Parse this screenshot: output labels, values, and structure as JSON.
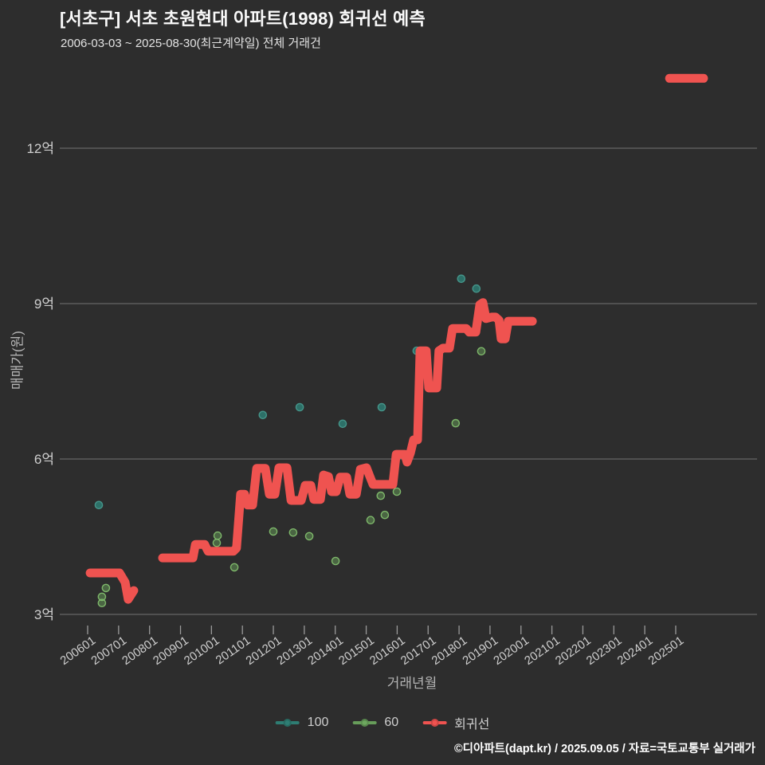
{
  "header": {
    "title": "[서초구] 서초 초원현대 아파트(1998) 회귀선 예측",
    "subtitle": "2006-03-03 ~ 2025-08-30(최근계약일) 전체 거래건"
  },
  "footer": {
    "credit": "©디아파트(dapt.kr) / 2025.09.05 / 자료=국토교통부 실거래가"
  },
  "colors": {
    "background": "#2d2d2d",
    "red": "#ef5350",
    "teal": "#2e7d73",
    "teal_stroke": "#45958a",
    "green_fill": "rgba(110,170,95,0.45)",
    "green_stroke": "rgba(130,190,110,0.95)",
    "grid": "#8c8c8c",
    "tick": "#9a9a9a",
    "tick_text": "#cfcfcf"
  },
  "chart_data": {
    "type": "scatter+line",
    "title": "[서초구] 서초 초원현대 아파트(1998) 회귀선 예측",
    "subtitle": "2006-03-03 ~ 2025-08-30(최근계약일) 전체 거래건",
    "xlabel": "거래년월",
    "ylabel": "매매가(원)",
    "legend_position": "bottom-center",
    "grid": "horizontal-only",
    "x_axis": {
      "tick_labels": [
        "200601",
        "200701",
        "200801",
        "200901",
        "201001",
        "201101",
        "201201",
        "201301",
        "201401",
        "201501",
        "201601",
        "201701",
        "201801",
        "201901",
        "202001",
        "202101",
        "202201",
        "202301",
        "202401",
        "202501"
      ],
      "tick_years": [
        2006,
        2007,
        2008,
        2009,
        2010,
        2011,
        2012,
        2013,
        2014,
        2015,
        2016,
        2017,
        2018,
        2019,
        2020,
        2021,
        2022,
        2023,
        2024,
        2025
      ],
      "range_years": [
        2005.1,
        2027.6
      ]
    },
    "y_axis": {
      "tick_labels": [
        "3억",
        "6억",
        "9억",
        "12억"
      ],
      "tick_values": [
        3,
        6,
        9,
        12
      ],
      "range_eok": [
        2.5,
        13.9
      ],
      "unit": "억"
    },
    "series": [
      {
        "name": "100",
        "type": "scatter",
        "color_key": "teal",
        "points": [
          [
            2006.36,
            5.11
          ],
          [
            2011.66,
            6.85
          ],
          [
            2012.85,
            7.0
          ],
          [
            2014.24,
            6.68
          ],
          [
            2015.5,
            7.0
          ],
          [
            2016.63,
            8.09
          ],
          [
            2018.07,
            9.48
          ],
          [
            2018.56,
            9.29
          ]
        ]
      },
      {
        "name": "60",
        "type": "scatter",
        "color_key": "green",
        "points": [
          [
            2006.46,
            3.22
          ],
          [
            2006.46,
            3.34
          ],
          [
            2006.59,
            3.51
          ],
          [
            2010.17,
            4.38
          ],
          [
            2010.2,
            4.52
          ],
          [
            2010.74,
            3.91
          ],
          [
            2012.0,
            4.6
          ],
          [
            2012.64,
            4.58
          ],
          [
            2013.16,
            4.51
          ],
          [
            2014.01,
            4.03
          ],
          [
            2015.14,
            4.82
          ],
          [
            2015.47,
            5.29
          ],
          [
            2015.6,
            4.92
          ],
          [
            2015.99,
            5.37
          ],
          [
            2017.89,
            6.69
          ],
          [
            2018.72,
            8.08
          ]
        ]
      },
      {
        "name": "회귀선",
        "type": "line",
        "color_key": "red",
        "segments": [
          [
            [
              2006.08,
              3.8
            ],
            [
              2007.03,
              3.8
            ],
            [
              2007.21,
              3.62
            ],
            [
              2007.31,
              3.29
            ],
            [
              2007.49,
              3.46
            ]
          ],
          [
            [
              2008.42,
              4.09
            ],
            [
              2009.4,
              4.09
            ],
            [
              2009.48,
              4.35
            ],
            [
              2009.78,
              4.35
            ],
            [
              2009.89,
              4.22
            ],
            [
              2010.71,
              4.22
            ],
            [
              2010.81,
              4.28
            ],
            [
              2010.94,
              5.32
            ],
            [
              2011.07,
              5.32
            ],
            [
              2011.17,
              5.11
            ],
            [
              2011.33,
              5.11
            ],
            [
              2011.46,
              5.82
            ],
            [
              2011.74,
              5.82
            ],
            [
              2011.87,
              5.32
            ],
            [
              2012.05,
              5.32
            ],
            [
              2012.18,
              5.83
            ],
            [
              2012.44,
              5.83
            ],
            [
              2012.57,
              5.2
            ],
            [
              2012.9,
              5.2
            ],
            [
              2013.03,
              5.49
            ],
            [
              2013.21,
              5.49
            ],
            [
              2013.31,
              5.22
            ],
            [
              2013.52,
              5.22
            ],
            [
              2013.62,
              5.69
            ],
            [
              2013.78,
              5.66
            ],
            [
              2013.88,
              5.37
            ],
            [
              2014.03,
              5.37
            ],
            [
              2014.16,
              5.65
            ],
            [
              2014.37,
              5.65
            ],
            [
              2014.47,
              5.32
            ],
            [
              2014.68,
              5.32
            ],
            [
              2014.81,
              5.8
            ],
            [
              2015.01,
              5.83
            ],
            [
              2015.12,
              5.66
            ],
            [
              2015.22,
              5.51
            ],
            [
              2015.86,
              5.51
            ],
            [
              2015.97,
              6.09
            ],
            [
              2016.25,
              6.09
            ],
            [
              2016.32,
              5.94
            ],
            [
              2016.43,
              6.12
            ],
            [
              2016.53,
              6.37
            ],
            [
              2016.66,
              6.37
            ],
            [
              2016.74,
              8.09
            ],
            [
              2016.94,
              8.09
            ],
            [
              2017.02,
              7.37
            ],
            [
              2017.28,
              7.37
            ],
            [
              2017.35,
              8.09
            ],
            [
              2017.48,
              8.14
            ],
            [
              2017.69,
              8.14
            ],
            [
              2017.79,
              8.52
            ],
            [
              2018.23,
              8.52
            ],
            [
              2018.33,
              8.45
            ],
            [
              2018.54,
              8.45
            ],
            [
              2018.67,
              8.98
            ],
            [
              2018.77,
              9.02
            ],
            [
              2018.87,
              8.71
            ],
            [
              2019.05,
              8.74
            ],
            [
              2019.18,
              8.74
            ],
            [
              2019.29,
              8.68
            ],
            [
              2019.36,
              8.32
            ],
            [
              2019.49,
              8.32
            ],
            [
              2019.59,
              8.66
            ],
            [
              2020.37,
              8.66
            ]
          ],
          [
            [
              2024.8,
              13.35
            ],
            [
              2025.9,
              13.35
            ]
          ]
        ]
      }
    ]
  }
}
